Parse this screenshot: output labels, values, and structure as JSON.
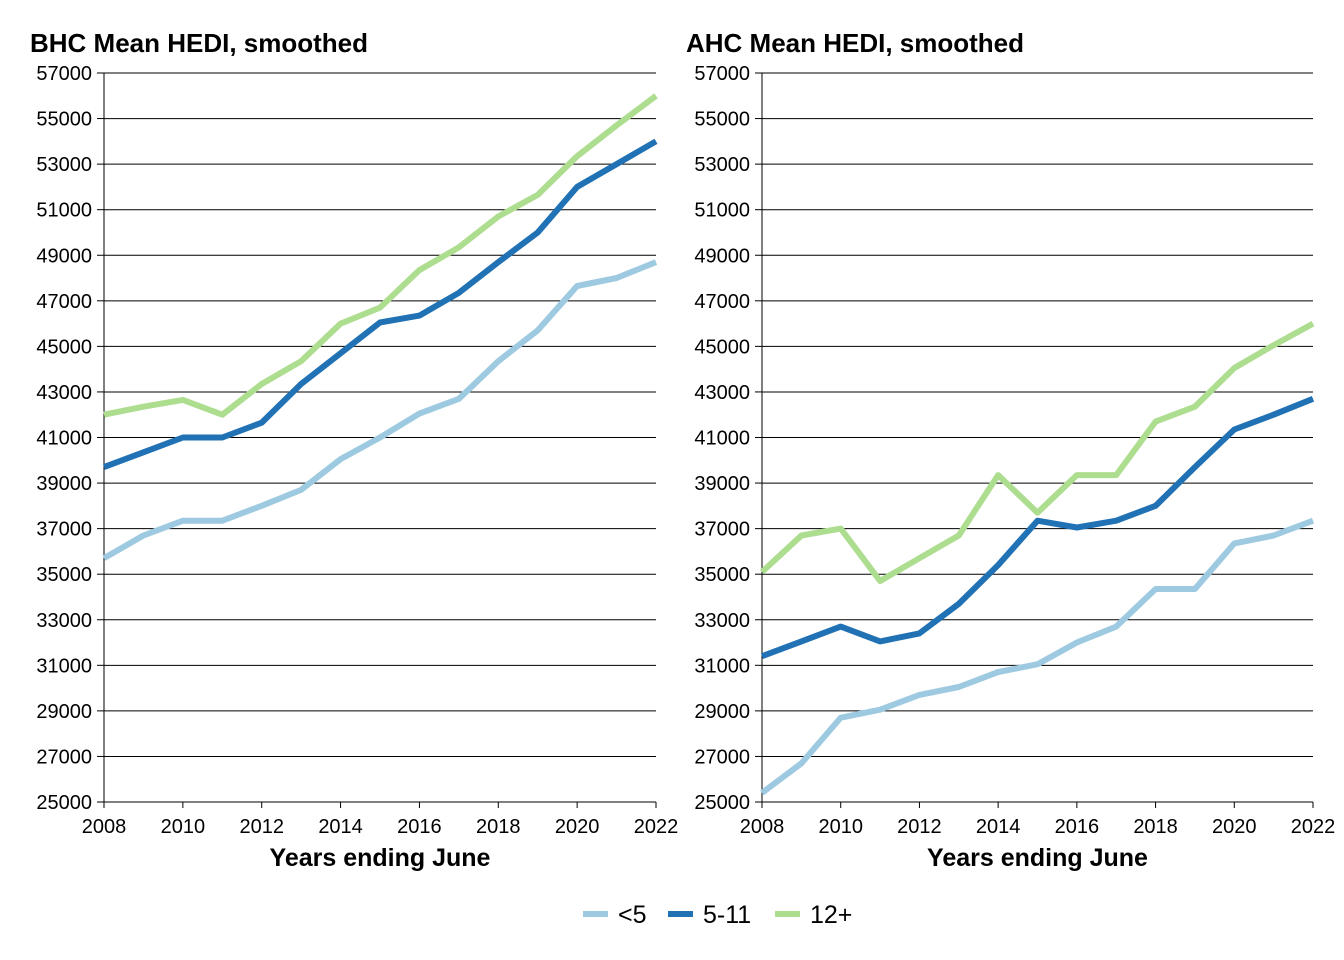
{
  "chart_data": [
    {
      "type": "line",
      "title": "BHC Mean HEDI, smoothed",
      "xlabel": "Years ending June",
      "ylabel": "",
      "x": [
        2008,
        2009,
        2010,
        2011,
        2012,
        2013,
        2014,
        2015,
        2016,
        2017,
        2018,
        2019,
        2020,
        2021,
        2022
      ],
      "xlim": [
        2008,
        2022
      ],
      "ylim": [
        25000,
        57000
      ],
      "xticks": [
        "2008",
        "2010",
        "2012",
        "2014",
        "2016",
        "2018",
        "2020",
        "2022"
      ],
      "yticks": [
        "25000",
        "27000",
        "29000",
        "31000",
        "33000",
        "35000",
        "37000",
        "39000",
        "41000",
        "43000",
        "45000",
        "47000",
        "49000",
        "51000",
        "53000",
        "55000",
        "57000"
      ],
      "grid": "horizontal",
      "series": [
        {
          "name": "<5",
          "color": "#9ecae1",
          "values": [
            35700,
            36700,
            37350,
            37350,
            38000,
            38700,
            40050,
            41000,
            42050,
            42700,
            44350,
            45700,
            47650,
            48000,
            48700
          ]
        },
        {
          "name": "5-11",
          "color": "#2171b5",
          "values": [
            39700,
            40350,
            41000,
            41000,
            41650,
            43350,
            44700,
            46050,
            46350,
            47350,
            48700,
            50000,
            52000,
            53000,
            54000
          ]
        },
        {
          "name": "12+",
          "color": "#addd8e",
          "values": [
            42000,
            42350,
            42650,
            42000,
            43350,
            44350,
            46000,
            46700,
            48350,
            49350,
            50700,
            51650,
            53350,
            54700,
            56000
          ]
        }
      ]
    },
    {
      "type": "line",
      "title": "AHC Mean HEDI, smoothed",
      "xlabel": "Years ending June",
      "ylabel": "",
      "x": [
        2008,
        2009,
        2010,
        2011,
        2012,
        2013,
        2014,
        2015,
        2016,
        2017,
        2018,
        2019,
        2020,
        2021,
        2022
      ],
      "xlim": [
        2008,
        2022
      ],
      "ylim": [
        25000,
        57000
      ],
      "xticks": [
        "2008",
        "2010",
        "2012",
        "2014",
        "2016",
        "2018",
        "2020",
        "2022"
      ],
      "yticks": [
        "25000",
        "27000",
        "29000",
        "31000",
        "33000",
        "35000",
        "37000",
        "39000",
        "41000",
        "43000",
        "45000",
        "47000",
        "49000",
        "51000",
        "53000",
        "55000",
        "57000"
      ],
      "grid": "horizontal",
      "series": [
        {
          "name": "<5",
          "color": "#9ecae1",
          "values": [
            25400,
            26700,
            28700,
            29050,
            29700,
            30050,
            30700,
            31050,
            32000,
            32700,
            34350,
            34350,
            36350,
            36700,
            37350
          ]
        },
        {
          "name": "5-11",
          "color": "#2171b5",
          "values": [
            31400,
            32050,
            32700,
            32050,
            32400,
            33700,
            35400,
            37350,
            37050,
            37350,
            38000,
            39700,
            41350,
            42000,
            42700
          ]
        },
        {
          "name": "12+",
          "color": "#addd8e",
          "values": [
            35100,
            36700,
            37000,
            34700,
            35700,
            36700,
            39350,
            37700,
            39350,
            39350,
            41700,
            42350,
            44050,
            45050,
            46000
          ]
        }
      ]
    }
  ],
  "legend": {
    "placement": "bottom-center",
    "items": [
      {
        "label": "<5",
        "color": "#9ecae1"
      },
      {
        "label": "5-11",
        "color": "#2171b5"
      },
      {
        "label": "12+",
        "color": "#addd8e"
      }
    ]
  }
}
